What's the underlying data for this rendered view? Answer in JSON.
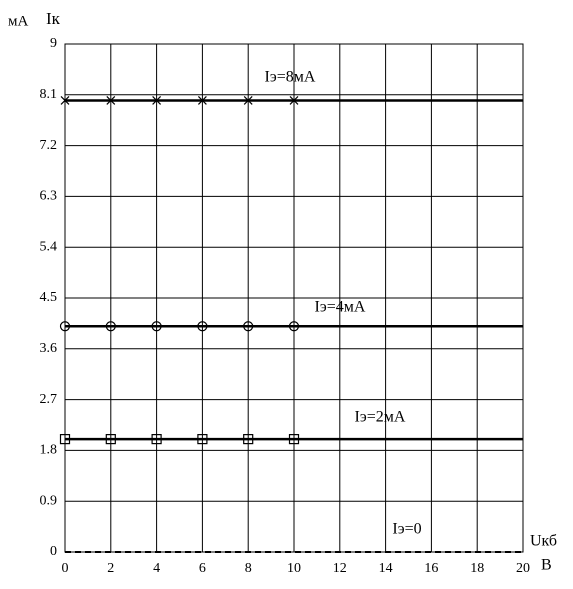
{
  "chart_data": {
    "type": "line",
    "y_label": "Iк",
    "y_unit": "мА",
    "x_label": "Uкб",
    "x_unit": "В",
    "x": [
      0,
      2,
      4,
      6,
      8,
      10,
      12,
      14,
      16,
      18,
      20
    ],
    "series": [
      {
        "name": "Iэ=8мА",
        "color": "#000000",
        "marker": "x",
        "marker_until": 10,
        "values": [
          8,
          8,
          8,
          8,
          8,
          8,
          8,
          8,
          8,
          8,
          8
        ]
      },
      {
        "name": "Iэ=4мА",
        "color": "#000000",
        "marker": "circle",
        "marker_until": 10,
        "values": [
          4,
          4,
          4,
          4,
          4,
          4,
          4,
          4,
          4,
          4,
          4
        ]
      },
      {
        "name": "Iэ=2мА",
        "color": "#000000",
        "marker": "square",
        "marker_until": 10,
        "values": [
          2,
          2,
          2,
          2,
          2,
          2,
          2,
          2,
          2,
          2,
          2
        ]
      },
      {
        "name": "Iэ=0",
        "color": "#000000",
        "marker": "none",
        "dashed": true,
        "values": [
          0,
          0,
          0,
          0,
          0,
          0,
          0,
          0,
          0,
          0,
          0
        ]
      }
    ],
    "xlim": [
      0,
      20
    ],
    "xticks": [
      0,
      2,
      4,
      6,
      8,
      10,
      12,
      14,
      16,
      18,
      20
    ],
    "ylim": [
      0,
      9
    ],
    "yticks": [
      0,
      0.9,
      1.8,
      2.7,
      3.6,
      4.5,
      5.4,
      6.3,
      7.2,
      8.1,
      9
    ],
    "grid": true
  }
}
